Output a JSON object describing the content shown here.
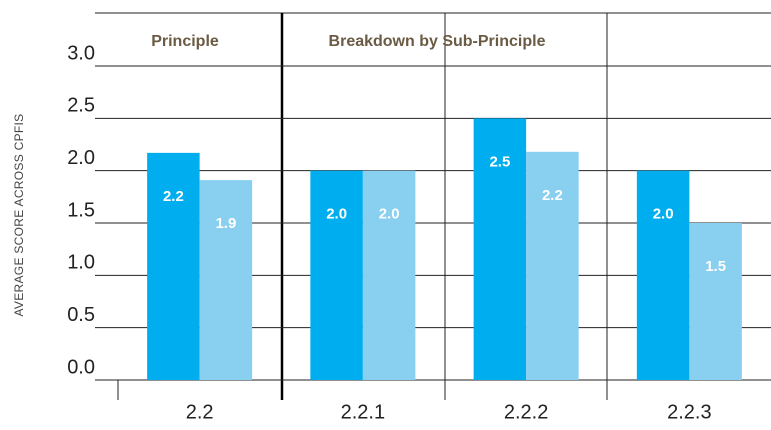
{
  "chart_data": {
    "type": "bar",
    "y_label": "AVERAGE SCORE ACROSS CPFIS",
    "annotations": [
      {
        "text": "Principle"
      },
      {
        "text": "Breakdown by Sub-Principle"
      }
    ],
    "categories": [
      "2.2",
      "2.2.1",
      "2.2.2",
      "2.2.3"
    ],
    "series": [
      {
        "color": "#00aeef",
        "values": [
          2.17,
          2.0,
          2.5,
          2.0
        ],
        "value_labels": [
          "2.2",
          "2.0",
          "2.5",
          "2.0"
        ]
      },
      {
        "color": "#89cff0",
        "values": [
          1.91,
          2.0,
          2.18,
          1.5
        ],
        "value_labels": [
          "1.9",
          "2.0",
          "2.2",
          "1.5"
        ]
      }
    ],
    "ylim": [
      0,
      3
    ],
    "yticks": [
      {
        "value": 0,
        "label": "0.0"
      },
      0.5,
      {
        "value": 1,
        "label": "1.0"
      },
      1.5,
      {
        "value": 2,
        "label": "2.0"
      },
      2.5,
      {
        "value": 3,
        "label": "3.0"
      }
    ],
    "grid": true
  }
}
